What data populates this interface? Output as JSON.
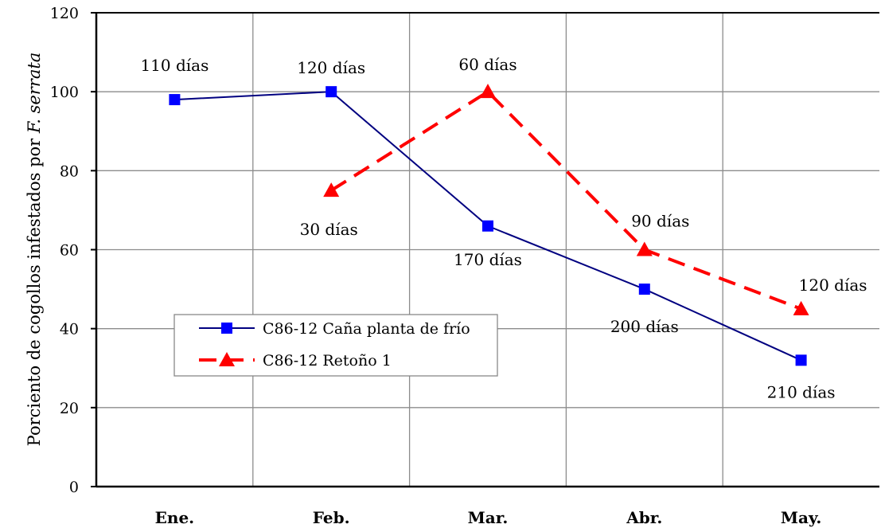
{
  "chart_data": {
    "type": "line",
    "categories": [
      "Ene.",
      "Feb.",
      "Mar.",
      "Abr.",
      "May."
    ],
    "ylabel_prefix": "Porciento de cogollos infestados por ",
    "ylabel_italic": "F. serrata",
    "ylim": [
      0,
      120
    ],
    "yticks": [
      "0",
      "20",
      "40",
      "60",
      "80",
      "100",
      "120"
    ],
    "grid": true,
    "legend_position": "lower-left",
    "series": [
      {
        "name": "C86-12 Caña planta de frío",
        "color": "#000080",
        "marker_color": "#0000ff",
        "marker": "square",
        "line_style": "solid",
        "x": [
          "Ene.",
          "Feb.",
          "Mar.",
          "Abr.",
          "May."
        ],
        "values": [
          98,
          100,
          66,
          50,
          32
        ],
        "labels": [
          "110 días",
          "120 días",
          "170 días",
          "200 días",
          "210 días"
        ]
      },
      {
        "name": "C86-12 Retoño 1",
        "color": "#ff0000",
        "marker_color": "#ff0000",
        "marker": "triangle",
        "line_style": "dashed",
        "x": [
          "Feb.",
          "Mar.",
          "Abr.",
          "May."
        ],
        "values": [
          75,
          100,
          60,
          45
        ],
        "labels": [
          "30 días",
          "60 días",
          "90 días",
          "120 días"
        ]
      }
    ]
  }
}
